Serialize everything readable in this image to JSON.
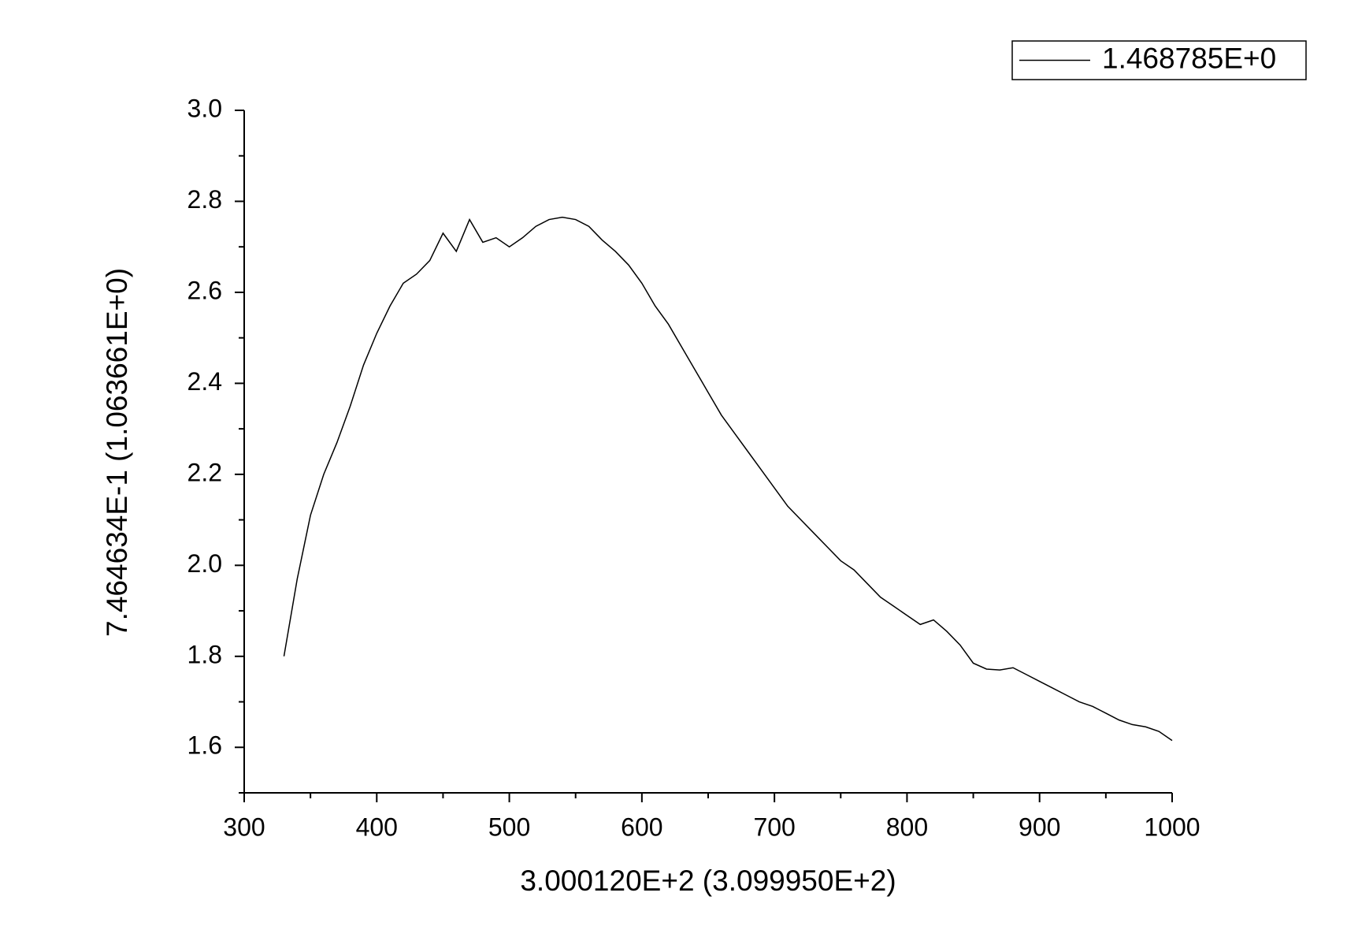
{
  "chart_data": {
    "type": "line",
    "x_label": "3.000120E+2 (3.099950E+2)",
    "y_label": "7.464634E-1 (1.063661E+0)",
    "x": [
      330,
      340,
      350,
      360,
      370,
      380,
      390,
      400,
      410,
      420,
      430,
      440,
      450,
      460,
      470,
      480,
      490,
      500,
      510,
      520,
      530,
      540,
      550,
      560,
      570,
      580,
      590,
      600,
      610,
      620,
      630,
      640,
      650,
      660,
      670,
      680,
      690,
      700,
      710,
      720,
      730,
      740,
      750,
      760,
      770,
      780,
      790,
      800,
      810,
      820,
      830,
      840,
      850,
      860,
      870,
      880,
      890,
      900,
      910,
      920,
      930,
      940,
      950,
      960,
      970,
      980,
      990,
      1000
    ],
    "series": [
      {
        "name": "1.468785E+0",
        "color": "#000000",
        "values": [
          1.8,
          1.97,
          2.11,
          2.2,
          2.27,
          2.35,
          2.44,
          2.51,
          2.57,
          2.62,
          2.64,
          2.67,
          2.73,
          2.69,
          2.76,
          2.71,
          2.72,
          2.7,
          2.72,
          2.745,
          2.76,
          2.765,
          2.76,
          2.745,
          2.715,
          2.69,
          2.66,
          2.62,
          2.57,
          2.53,
          2.48,
          2.43,
          2.38,
          2.33,
          2.29,
          2.25,
          2.21,
          2.17,
          2.13,
          2.1,
          2.07,
          2.04,
          2.01,
          1.99,
          1.96,
          1.93,
          1.91,
          1.89,
          1.87,
          1.88,
          1.855,
          1.825,
          1.785,
          1.772,
          1.77,
          1.775,
          1.76,
          1.745,
          1.73,
          1.715,
          1.7,
          1.69,
          1.675,
          1.66,
          1.65,
          1.645,
          1.635,
          1.615
        ]
      }
    ],
    "xlim": [
      300,
      1000
    ],
    "ylim": [
      1.5,
      3.0
    ],
    "xticks": [
      300,
      400,
      500,
      600,
      700,
      800,
      900,
      1000
    ],
    "xminorticks": [
      350,
      450,
      550,
      650,
      750,
      850,
      950
    ],
    "yticks": [
      1.6,
      1.8,
      {
        "value": 2,
        "label": "2.0"
      },
      2.2,
      2.4,
      2.6,
      2.8,
      {
        "value": 3,
        "label": "3.0"
      }
    ],
    "yminorticks": [
      1.5,
      1.7,
      1.9,
      2.1,
      2.3,
      2.5,
      2.7,
      2.9
    ],
    "legend": "top-right"
  }
}
